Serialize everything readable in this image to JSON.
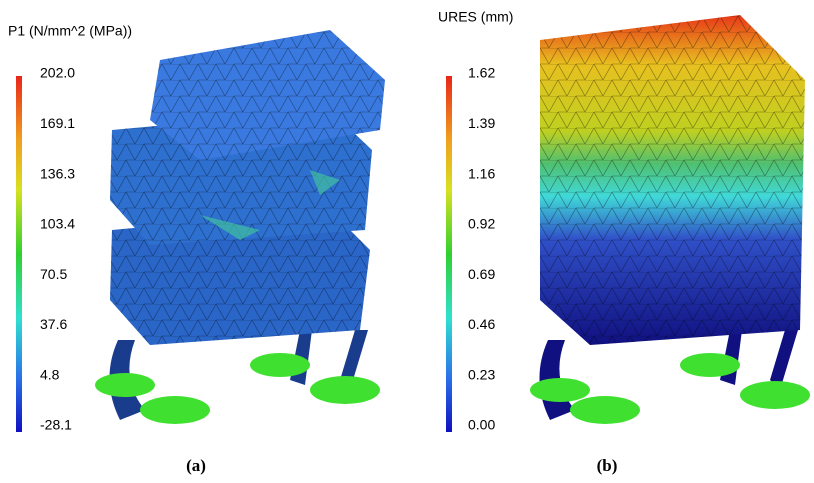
{
  "panels": [
    {
      "title": "P1 (N/mm^2 (MPa))",
      "labels": [
        "202.0",
        "169.1",
        "136.3",
        "103.4",
        "70.5",
        "37.6",
        "4.8",
        "-28.1"
      ],
      "caption": "(a)"
    },
    {
      "title": "URES (mm)",
      "labels": [
        "1.62",
        "1.39",
        "1.16",
        "0.92",
        "0.69",
        "0.46",
        "0.23",
        "0.00"
      ],
      "caption": "(b)"
    }
  ]
}
